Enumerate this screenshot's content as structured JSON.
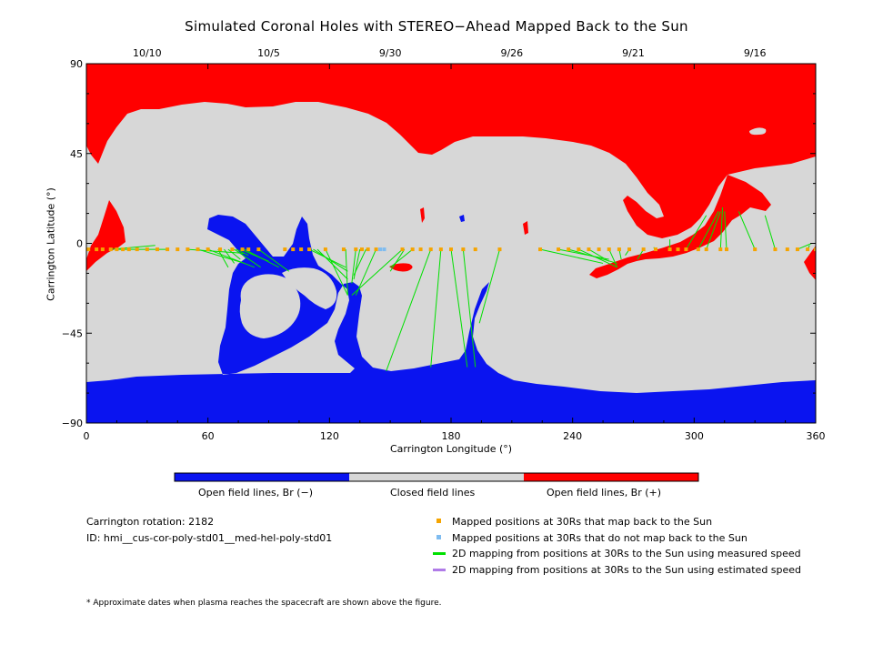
{
  "title": "Simulated Coronal Holes with STEREO−Ahead Mapped Back to the Sun",
  "colors": {
    "open_negative": "#0a14f0",
    "closed": "#d7d7d7",
    "open_positive": "#ff0000",
    "mapped": "#f5a400",
    "not_mapped": "#7fbcf0",
    "measured_line": "#00e000",
    "estimated_line": "#b07be8"
  },
  "chart_data": {
    "type": "scatter",
    "xlabel": "Carrington Longitude (°)",
    "ylabel": "Carrington Latitude (°)",
    "xlim": [
      0,
      360
    ],
    "ylim": [
      -90,
      90
    ],
    "x_ticks": [
      "0",
      "60",
      "120",
      "180",
      "240",
      "300",
      "360"
    ],
    "y_ticks": [
      "90",
      "45",
      "0",
      "−45",
      "−90"
    ],
    "top_dates": [
      {
        "label": "10/10",
        "x": 30
      },
      {
        "label": "10/5",
        "x": 90
      },
      {
        "label": "9/30",
        "x": 150
      },
      {
        "label": "9/26",
        "x": 210
      },
      {
        "label": "9/21",
        "x": 270
      },
      {
        "label": "9/16",
        "x": 330
      }
    ],
    "colorbar_labels": [
      "Open field lines, Br (−)",
      "Closed field lines",
      "Open field lines, Br (+)"
    ],
    "mapped_points": [
      [
        1,
        -3
      ],
      [
        5,
        -3
      ],
      [
        8,
        -3
      ],
      [
        12,
        -3
      ],
      [
        15,
        -3
      ],
      [
        18,
        -3
      ],
      [
        21,
        -3
      ],
      [
        25,
        -3
      ],
      [
        30,
        -3
      ],
      [
        35,
        -3
      ],
      [
        40,
        -3
      ],
      [
        45,
        -3
      ],
      [
        50,
        -3
      ],
      [
        55,
        -3
      ],
      [
        60,
        -3
      ],
      [
        66,
        -3
      ],
      [
        72,
        -3
      ],
      [
        77,
        -3
      ],
      [
        80,
        -3
      ],
      [
        85,
        -3
      ],
      [
        98,
        -3
      ],
      [
        102,
        -3
      ],
      [
        106,
        -3
      ],
      [
        110,
        -3
      ],
      [
        118,
        -3
      ],
      [
        127,
        -3
      ],
      [
        133,
        -3
      ],
      [
        136,
        -3
      ],
      [
        139,
        -3
      ],
      [
        143,
        -3
      ],
      [
        156,
        -3
      ],
      [
        161,
        -3
      ],
      [
        165,
        -3
      ],
      [
        170,
        -3
      ],
      [
        175,
        -3
      ],
      [
        180,
        -3
      ],
      [
        186,
        -3
      ],
      [
        192,
        -3
      ],
      [
        204,
        -3
      ],
      [
        224,
        -3
      ],
      [
        233,
        -3
      ],
      [
        238,
        -3
      ],
      [
        243,
        -3
      ],
      [
        248,
        -3
      ],
      [
        253,
        -3
      ],
      [
        258,
        -3
      ],
      [
        263,
        -3
      ],
      [
        268,
        -3
      ],
      [
        275,
        -3
      ],
      [
        281,
        -3
      ],
      [
        288,
        -3
      ],
      [
        292,
        -3
      ],
      [
        296,
        -3
      ],
      [
        302,
        -3
      ],
      [
        306,
        -3
      ],
      [
        313,
        -3
      ],
      [
        316,
        -3
      ],
      [
        330,
        -3
      ],
      [
        340,
        -3
      ],
      [
        346,
        -3
      ],
      [
        351,
        -3
      ],
      [
        356,
        -3
      ],
      [
        360,
        -3
      ]
    ],
    "unmapped_points": [
      [
        145,
        -3
      ],
      [
        147,
        -3
      ]
    ],
    "measured_lines": [
      [
        12,
        -3,
        34,
        -1
      ],
      [
        14,
        -3,
        40,
        -3
      ],
      [
        65,
        -3,
        70,
        -12
      ],
      [
        68,
        -3,
        73,
        -10
      ],
      [
        70,
        -3,
        76,
        -8
      ],
      [
        74,
        -3,
        80,
        -6
      ],
      [
        50,
        -3,
        78,
        -5
      ],
      [
        55,
        -3,
        78,
        -10
      ],
      [
        60,
        -3,
        83,
        -12
      ],
      [
        73,
        -3,
        86,
        -12
      ],
      [
        76,
        -3,
        90,
        -9
      ],
      [
        78,
        -3,
        95,
        -12
      ],
      [
        85,
        -3,
        100,
        -14
      ],
      [
        110,
        -3,
        128,
        -12
      ],
      [
        112,
        -3,
        129,
        -14
      ],
      [
        114,
        -3,
        129,
        -18
      ],
      [
        118,
        -3,
        129,
        -26
      ],
      [
        128,
        -3,
        129,
        -26
      ],
      [
        133,
        -3,
        131,
        -20
      ],
      [
        135,
        -3,
        132,
        -18
      ],
      [
        138,
        -3,
        132,
        -16
      ],
      [
        143,
        -3,
        133,
        -26
      ],
      [
        156,
        -3,
        131,
        -26
      ],
      [
        157,
        -3,
        150,
        -14
      ],
      [
        161,
        -3,
        150,
        -12
      ],
      [
        170,
        -3,
        148,
        -64
      ],
      [
        175,
        -3,
        170,
        -62
      ],
      [
        180,
        -3,
        188,
        -62
      ],
      [
        186,
        -3,
        192,
        -62
      ],
      [
        204,
        -3,
        194,
        -40
      ],
      [
        224,
        -3,
        255,
        -10
      ],
      [
        233,
        -3,
        258,
        -8
      ],
      [
        238,
        -3,
        262,
        -10
      ],
      [
        243,
        -3,
        262,
        -12
      ],
      [
        248,
        -3,
        258,
        -9
      ],
      [
        258,
        -3,
        262,
        -12
      ],
      [
        263,
        -3,
        264,
        -8
      ],
      [
        268,
        -3,
        266,
        -6
      ],
      [
        275,
        -3,
        272,
        -8
      ],
      [
        281,
        -3,
        280,
        -2
      ],
      [
        288,
        -3,
        288,
        2
      ],
      [
        296,
        -3,
        306,
        14
      ],
      [
        302,
        -3,
        312,
        16
      ],
      [
        306,
        -3,
        313,
        16
      ],
      [
        313,
        -3,
        314,
        18
      ],
      [
        316,
        -3,
        315,
        16
      ],
      [
        330,
        -3,
        322,
        16
      ],
      [
        340,
        -3,
        335,
        14
      ],
      [
        351,
        -3,
        358,
        0
      ],
      [
        356,
        -3,
        357,
        -1
      ]
    ],
    "legend": [
      "Mapped positions at 30Rs that map back to the Sun",
      "Mapped positions at 30Rs that do not map back to the Sun",
      "2D mapping from positions at 30Rs to the Sun using measured speed",
      "2D mapping from positions at 30Rs to the Sun using estimated speed"
    ]
  },
  "info": {
    "rotation": "Carrington rotation: 2182",
    "id": "ID: hmi__cus-cor-poly-std01__med-hel-poly-std01"
  },
  "footnote": "* Approximate dates when plasma reaches the spacecraft are shown above the figure."
}
